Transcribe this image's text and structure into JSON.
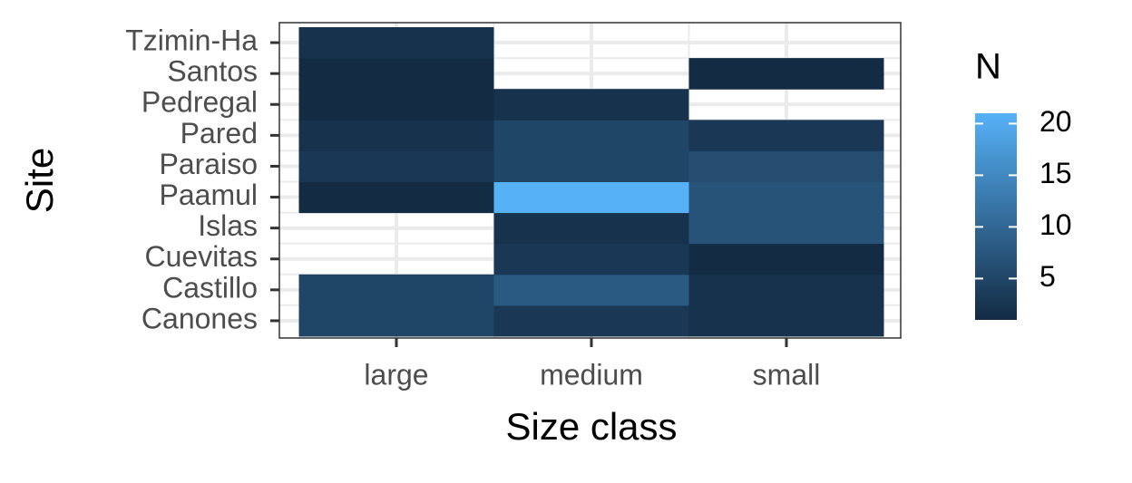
{
  "chart_data": {
    "type": "heatmap",
    "x_label": "Size class",
    "y_label": "Site",
    "x_categories": [
      "large",
      "medium",
      "small"
    ],
    "y_categories": [
      "Canones",
      "Castillo",
      "Cuevitas",
      "Islas",
      "Paamul",
      "Paraiso",
      "Pared",
      "Pedregal",
      "Santos",
      "Tzimin-Ha"
    ],
    "values": [
      [
        5,
        3,
        2
      ],
      [
        5,
        8,
        2
      ],
      [
        null,
        3,
        1
      ],
      [
        null,
        2,
        7
      ],
      [
        1,
        21,
        7
      ],
      [
        3,
        5,
        6
      ],
      [
        2,
        5,
        3
      ],
      [
        1,
        2,
        null
      ],
      [
        1,
        null,
        1
      ],
      [
        2,
        null,
        null
      ]
    ],
    "colorbar": {
      "title": "N",
      "lim": [
        1,
        21
      ],
      "ticks": [
        5,
        10,
        15,
        20
      ],
      "low_color": "#132B43",
      "high_color": "#56B1F7"
    },
    "grid": true
  }
}
